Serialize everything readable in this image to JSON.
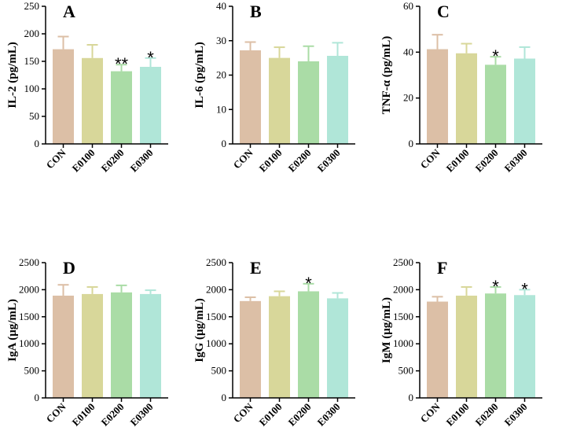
{
  "colors": [
    "#dcbfa6",
    "#d8d79a",
    "#aadca6",
    "#b0e6d8"
  ],
  "chart_data": [
    {
      "type": "bar",
      "panel": "A",
      "ylabel": "IL-2 (pg/mL)",
      "ylim": [
        0,
        250
      ],
      "yticks": [
        0,
        50,
        100,
        150,
        200,
        250
      ],
      "categories": [
        "CON",
        "E0100",
        "E0200",
        "E0300"
      ],
      "values": [
        172,
        156,
        132,
        140
      ],
      "errors": [
        23,
        24,
        12,
        16
      ],
      "significance": [
        "",
        "",
        "**",
        "*"
      ]
    },
    {
      "type": "bar",
      "panel": "B",
      "ylabel": "IL-6 (pg/mL)",
      "ylim": [
        0,
        40
      ],
      "yticks": [
        0,
        10,
        20,
        30,
        40
      ],
      "categories": [
        "CON",
        "E0100",
        "E0200",
        "E0300"
      ],
      "values": [
        27.2,
        25,
        24,
        25.6
      ],
      "errors": [
        2.4,
        3.1,
        4.4,
        3.8
      ],
      "significance": [
        "",
        "",
        "",
        ""
      ]
    },
    {
      "type": "bar",
      "panel": "C",
      "ylabel": "TNF-α (pg/mL)",
      "ylim": [
        0,
        60
      ],
      "yticks": [
        0,
        20,
        40,
        60
      ],
      "categories": [
        "CON",
        "E0100",
        "E0200",
        "E0300"
      ],
      "values": [
        41.3,
        39.5,
        34.5,
        37.2
      ],
      "errors": [
        6.3,
        4.2,
        3.5,
        5
      ],
      "significance": [
        "",
        "",
        "*",
        ""
      ]
    },
    {
      "type": "bar",
      "panel": "D",
      "ylabel": "IgA (μg/mL)",
      "ylim": [
        0,
        2500
      ],
      "yticks": [
        0,
        500,
        1000,
        1500,
        2000,
        2500
      ],
      "categories": [
        "CON",
        "E0100",
        "E0200",
        "E0300"
      ],
      "values": [
        1890,
        1920,
        1950,
        1920
      ],
      "errors": [
        200,
        130,
        130,
        70
      ],
      "significance": [
        "",
        "",
        "",
        ""
      ]
    },
    {
      "type": "bar",
      "panel": "E",
      "ylabel": "IgG (μg/mL)",
      "ylim": [
        0,
        2500
      ],
      "yticks": [
        0,
        500,
        1000,
        1500,
        2000,
        2500
      ],
      "categories": [
        "CON",
        "E0100",
        "E0200",
        "E0300"
      ],
      "values": [
        1790,
        1880,
        1970,
        1840
      ],
      "errors": [
        70,
        90,
        140,
        100
      ],
      "significance": [
        "",
        "",
        "*",
        ""
      ]
    },
    {
      "type": "bar",
      "panel": "F",
      "ylabel": "IgM (μg/mL)",
      "ylim": [
        0,
        2500
      ],
      "yticks": [
        0,
        500,
        1000,
        1500,
        2000,
        2500
      ],
      "categories": [
        "CON",
        "E0100",
        "E0200",
        "E0300"
      ],
      "values": [
        1780,
        1890,
        1930,
        1900
      ],
      "errors": [
        90,
        160,
        120,
        100
      ],
      "significance": [
        "",
        "",
        "*",
        "*"
      ]
    }
  ]
}
